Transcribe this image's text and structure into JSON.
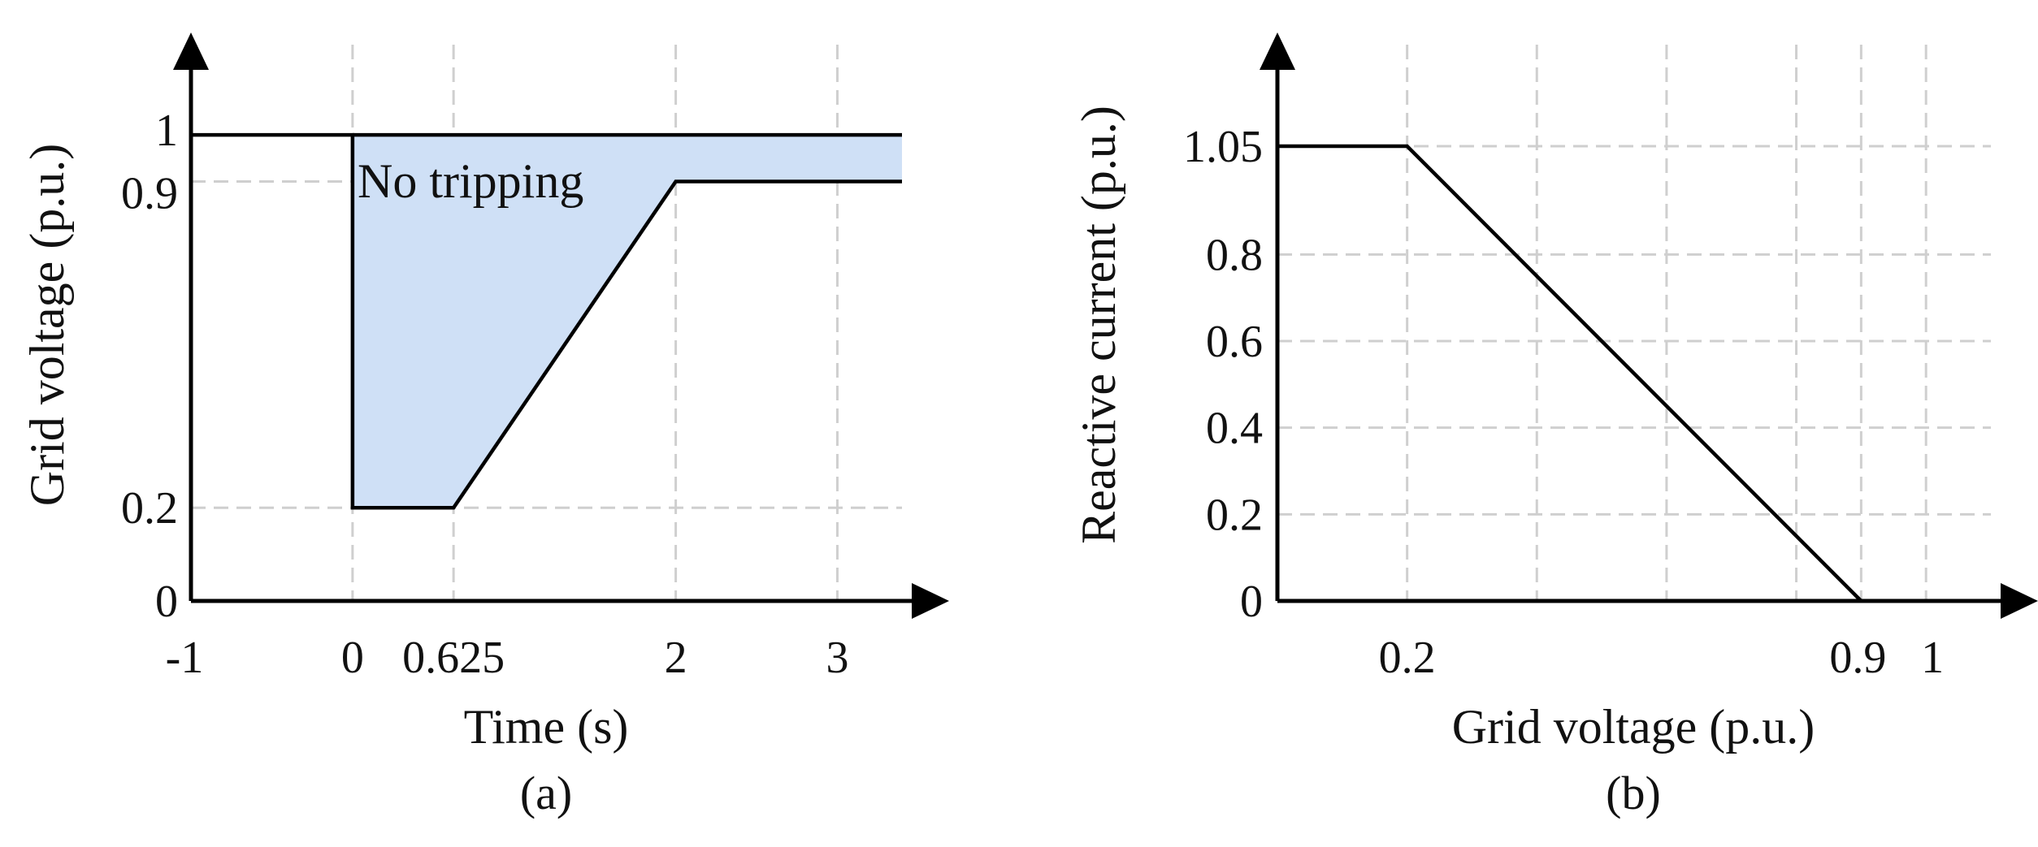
{
  "chart_data": [
    {
      "type": "line",
      "caption": "(a)",
      "xlabel": "Time (s)",
      "ylabel": "Grid voltage (p.u.)",
      "x_ticks": [
        "-1",
        "0",
        "0.625",
        "2",
        "3"
      ],
      "x_tick_values": [
        -1,
        0,
        0.625,
        2,
        3
      ],
      "y_ticks": [
        "0",
        "0.2",
        "0.9",
        "1"
      ],
      "y_tick_values": [
        0,
        0.2,
        0.9,
        1
      ],
      "xlim": [
        -1,
        3.4
      ],
      "ylim": [
        0,
        1.15
      ],
      "grid": true,
      "annotation": "No tripping",
      "series": [
        {
          "x": [
            -1,
            0,
            0,
            0.625,
            2,
            3.4
          ],
          "y": [
            1,
            1,
            0.2,
            0.2,
            0.9,
            0.9
          ]
        },
        {
          "x": [
            0,
            3.4
          ],
          "y": [
            1,
            1
          ]
        }
      ],
      "shaded_region_color": "#cfe0f6"
    },
    {
      "type": "line",
      "caption": "(b)",
      "xlabel": "Grid voltage (p.u.)",
      "ylabel": "Reactive current (p.u.)",
      "x_ticks": [
        "0.2",
        "0.9",
        "1"
      ],
      "x_tick_values": [
        0.2,
        0.9,
        1
      ],
      "y_ticks": [
        "0",
        "0.2",
        "0.4",
        "0.6",
        "0.8",
        "1.05"
      ],
      "y_tick_values": [
        0,
        0.2,
        0.4,
        0.6,
        0.8,
        1.05
      ],
      "xlim": [
        0,
        1.1
      ],
      "ylim": [
        0,
        1.2
      ],
      "grid": true,
      "series": [
        {
          "x": [
            0,
            0.2,
            0.9,
            1.1
          ],
          "y": [
            1.05,
            1.05,
            0,
            0
          ]
        }
      ]
    }
  ]
}
